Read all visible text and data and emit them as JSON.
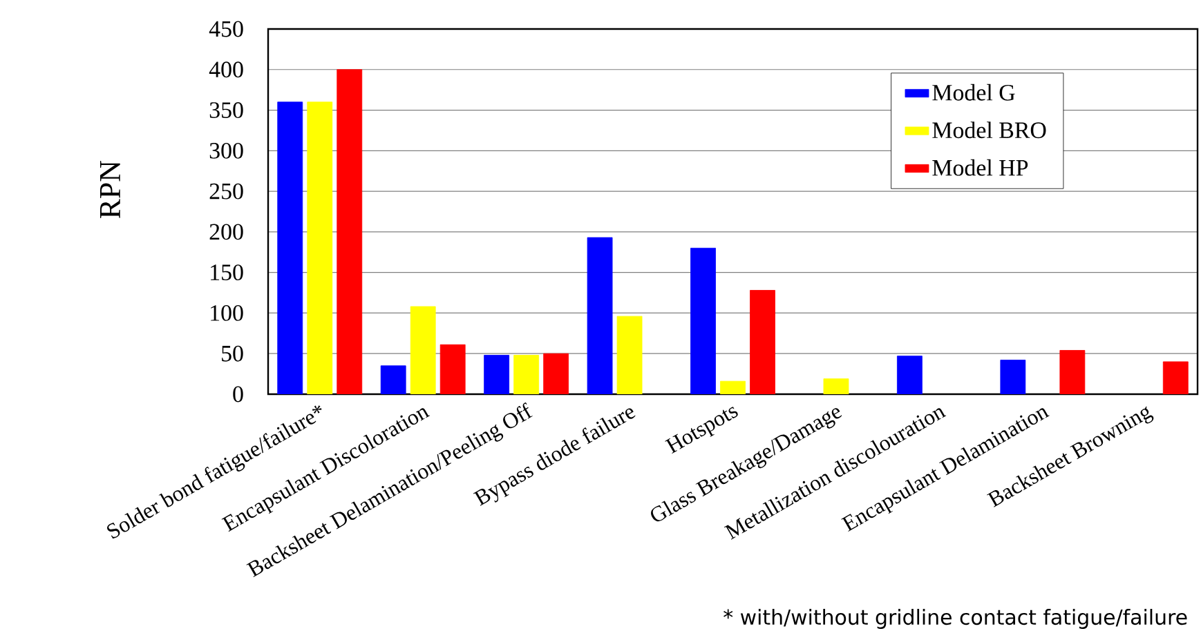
{
  "chart_data": {
    "type": "bar",
    "ylabel": "RPN",
    "categories": [
      "Solder bond fatigue/failure*",
      "Encapsulant Discoloration",
      "Backsheet Delamination/Peeling Off",
      "Bypass diode failure",
      "Hotspots",
      "Glass Breakage/Damage",
      "Metallization discolouration",
      "Encapsulant Delamination",
      "Backsheet Browning"
    ],
    "series": [
      {
        "name": "Model G",
        "color": "#0000ff",
        "values": [
          360,
          35,
          48,
          193,
          180,
          null,
          47,
          42,
          null
        ]
      },
      {
        "name": "Model BRO",
        "color": "#ffff00",
        "values": [
          360,
          108,
          48,
          96,
          16,
          19,
          null,
          null,
          null
        ]
      },
      {
        "name": "Model HP",
        "color": "#ff0000",
        "values": [
          400,
          61,
          50,
          null,
          128,
          null,
          null,
          54,
          40
        ]
      }
    ],
    "ylim": [
      0,
      450
    ],
    "yticks": [
      0,
      50,
      100,
      150,
      200,
      250,
      300,
      350,
      400,
      450
    ],
    "grid": "y",
    "legend": "top right",
    "annotations": [
      "* with/without gridline contact fatigue/failure"
    ]
  }
}
